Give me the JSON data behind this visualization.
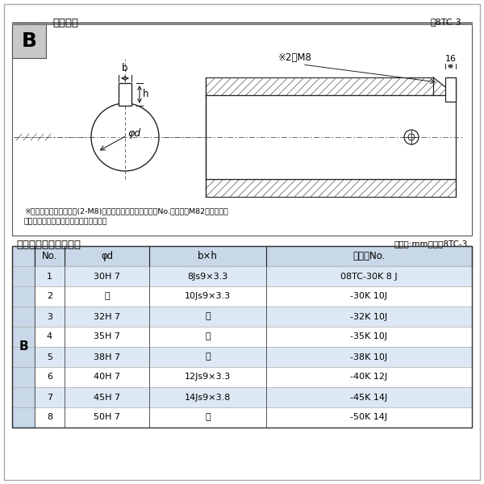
{
  "title_top": "軸穴形状",
  "fig_label_top": "図8TC-3",
  "title_bottom": "軸穴形状コード一覧表",
  "unit_label": "（単位:mm）　表8TC-3",
  "note1": "※セットボルト用タップ(2-M8)が必要な場合は右記コードNo.の末尾にM82を付ける。",
  "note2": "（セットボルトは付属されています。）",
  "dim_label_2m8": "※2－M8",
  "dim_label_16": "16",
  "dim_label_b": "b",
  "dim_label_h": "h",
  "dim_label_phid": "φd",
  "table_headers": [
    "No.",
    "φd",
    "b×h",
    "コードNo."
  ],
  "table_rows": [
    [
      "1",
      "30H 7",
      "8Js9×3.3",
      "08TC-30K 8 J"
    ],
    [
      "2",
      "〃",
      "10Js9×3.3",
      "-30K 10J"
    ],
    [
      "3",
      "32H 7",
      "〃",
      "-32K 10J"
    ],
    [
      "4",
      "35H 7",
      "〃",
      "-35K 10J"
    ],
    [
      "5",
      "38H 7",
      "〃",
      "-38K 10J"
    ],
    [
      "6",
      "40H 7",
      "12Js9×3.3",
      "-40K 12J"
    ],
    [
      "7",
      "45H 7",
      "14Js9×3.8",
      "-45K 14J"
    ],
    [
      "8",
      "50H 7",
      "〃",
      "-50K 14J"
    ]
  ],
  "row_label_B": "B",
  "bg_color": "#ffffff",
  "border_color": "#000000",
  "header_bg": "#c8d8e8",
  "row_even_bg": "#dce8f4",
  "row_odd_bg": "#ffffff",
  "label_col_bg": "#c8d8e8"
}
